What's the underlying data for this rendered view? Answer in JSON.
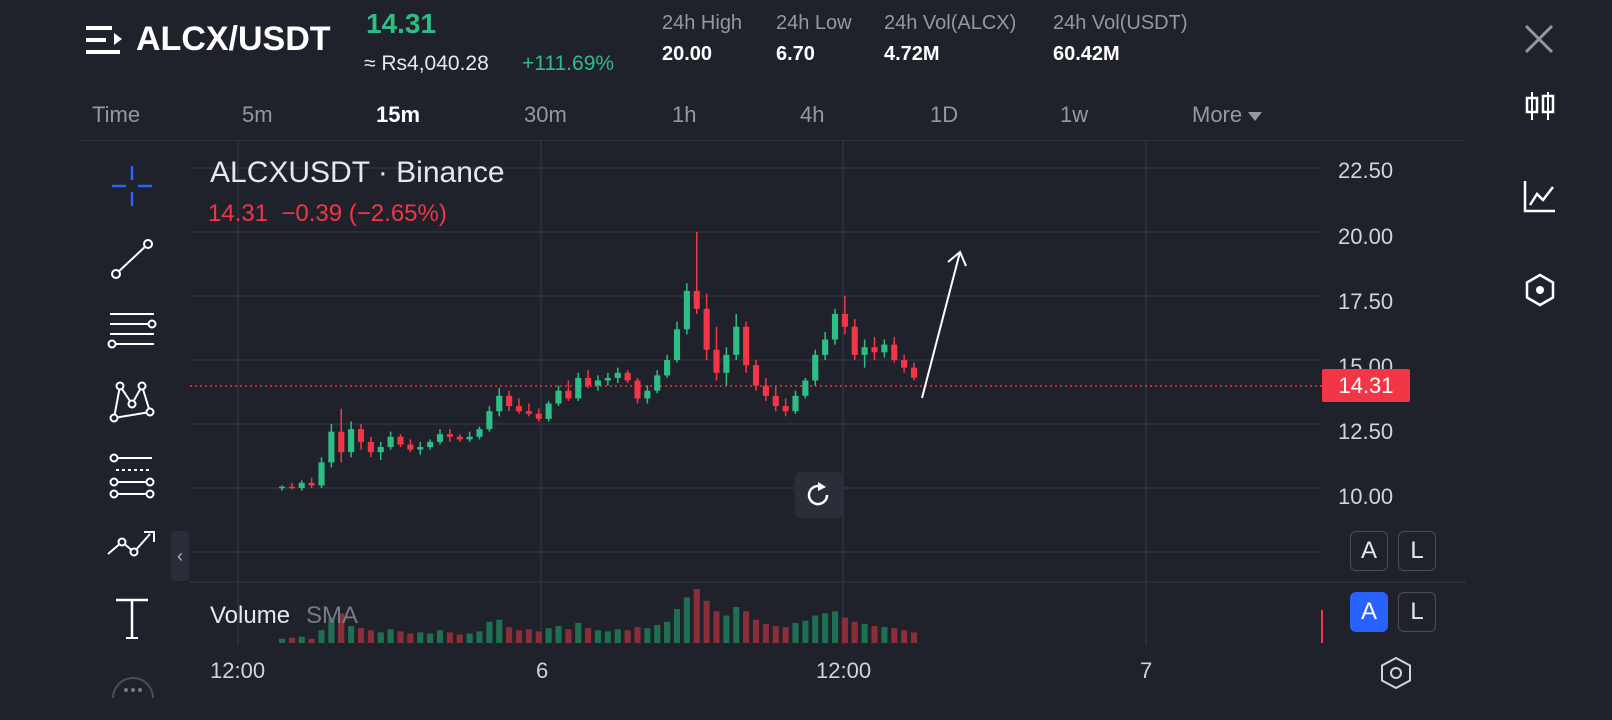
{
  "header": {
    "pair": "ALCX/USDT",
    "last_price": "14.31",
    "fiat_price": "≈ Rs4,040.28",
    "change_pct": "+111.69%",
    "stats": [
      {
        "label": "24h High",
        "value": "20.00"
      },
      {
        "label": "24h Low",
        "value": "6.70"
      },
      {
        "label": "24h Vol(ALCX)",
        "value": "4.72M"
      },
      {
        "label": "24h Vol(USDT)",
        "value": "60.42M"
      }
    ]
  },
  "timeframes": {
    "items": [
      "Time",
      "5m",
      "15m",
      "30m",
      "1h",
      "4h",
      "1D",
      "1w"
    ],
    "active": "15m",
    "more_label": "More"
  },
  "chart": {
    "symbol_title": "ALCXUSDT · Binance",
    "quote_line": "14.31  −0.39 (−2.65%)",
    "current_price_tag": "14.31",
    "volume_label": "Volume",
    "volume_sma": "SMA",
    "price_axis": [
      "22.50",
      "20.00",
      "17.50",
      "15.00",
      "12.50",
      "10.00"
    ],
    "time_axis": [
      "12:00",
      "6",
      "12:00",
      "7"
    ],
    "scale_buttons_1": [
      "A",
      "L"
    ],
    "scale_buttons_2": [
      "A",
      "L"
    ]
  },
  "icons": {
    "menu": "menu-icon",
    "close": "close-icon",
    "candles": "candlestick-icon",
    "indicators": "indicators-icon",
    "settings": "hexagon-settings-icon",
    "reset": "reset-icon"
  },
  "colors": {
    "up": "#2ebd85",
    "down": "#f23645",
    "accent": "#2962ff",
    "background": "#1f222b"
  },
  "chart_data": {
    "type": "candlestick",
    "note_series": "price ALCXUSDT 15m",
    "ylim": [
      8.5,
      23.5
    ],
    "grid": true,
    "candles": [
      [
        10.0,
        10.1,
        9.9,
        10.05
      ],
      [
        10.05,
        10.2,
        9.95,
        10.0
      ],
      [
        10.0,
        10.3,
        9.9,
        10.2
      ],
      [
        10.2,
        10.4,
        10.0,
        10.1
      ],
      [
        10.1,
        11.2,
        10.0,
        11.0
      ],
      [
        11.0,
        12.5,
        10.8,
        12.2
      ],
      [
        12.2,
        13.1,
        11.0,
        11.4
      ],
      [
        11.4,
        12.6,
        11.2,
        12.3
      ],
      [
        12.3,
        12.5,
        11.5,
        11.8
      ],
      [
        11.8,
        12.0,
        11.2,
        11.4
      ],
      [
        11.4,
        11.8,
        11.1,
        11.6
      ],
      [
        11.6,
        12.2,
        11.5,
        12.0
      ],
      [
        12.0,
        12.1,
        11.6,
        11.7
      ],
      [
        11.7,
        11.9,
        11.4,
        11.5
      ],
      [
        11.5,
        11.8,
        11.3,
        11.6
      ],
      [
        11.6,
        11.9,
        11.5,
        11.8
      ],
      [
        11.8,
        12.3,
        11.7,
        12.1
      ],
      [
        12.1,
        12.3,
        11.8,
        12.0
      ],
      [
        12.0,
        12.1,
        11.8,
        11.9
      ],
      [
        11.9,
        12.2,
        11.8,
        12.0
      ],
      [
        12.0,
        12.4,
        11.9,
        12.3
      ],
      [
        12.3,
        13.2,
        12.2,
        13.0
      ],
      [
        13.0,
        13.9,
        12.8,
        13.6
      ],
      [
        13.6,
        13.8,
        13.0,
        13.2
      ],
      [
        13.2,
        13.5,
        12.9,
        13.0
      ],
      [
        13.0,
        13.3,
        12.8,
        12.9
      ],
      [
        12.9,
        13.1,
        12.6,
        12.7
      ],
      [
        12.7,
        13.4,
        12.6,
        13.3
      ],
      [
        13.3,
        14.0,
        13.2,
        13.8
      ],
      [
        13.8,
        14.2,
        13.4,
        13.5
      ],
      [
        13.5,
        14.5,
        13.4,
        14.3
      ],
      [
        14.3,
        14.6,
        13.9,
        14.0
      ],
      [
        14.0,
        14.4,
        13.8,
        14.2
      ],
      [
        14.2,
        14.5,
        14.0,
        14.3
      ],
      [
        14.3,
        14.7,
        14.1,
        14.5
      ],
      [
        14.5,
        14.6,
        14.1,
        14.2
      ],
      [
        14.2,
        14.3,
        13.3,
        13.5
      ],
      [
        13.5,
        14.0,
        13.3,
        13.8
      ],
      [
        13.8,
        14.6,
        13.7,
        14.4
      ],
      [
        14.4,
        15.2,
        14.3,
        15.0
      ],
      [
        15.0,
        16.5,
        14.9,
        16.2
      ],
      [
        16.2,
        18.0,
        16.0,
        17.7
      ],
      [
        17.7,
        20.0,
        16.8,
        17.0
      ],
      [
        17.0,
        17.6,
        15.0,
        15.4
      ],
      [
        15.4,
        16.3,
        14.2,
        14.5
      ],
      [
        14.5,
        15.5,
        14.0,
        15.2
      ],
      [
        15.2,
        16.8,
        15.0,
        16.3
      ],
      [
        16.3,
        16.5,
        14.5,
        14.8
      ],
      [
        14.8,
        15.0,
        13.8,
        14.0
      ],
      [
        14.0,
        14.3,
        13.4,
        13.6
      ],
      [
        13.6,
        14.0,
        13.0,
        13.2
      ],
      [
        13.2,
        13.5,
        12.8,
        13.0
      ],
      [
        13.0,
        13.8,
        12.9,
        13.6
      ],
      [
        13.6,
        14.3,
        13.5,
        14.2
      ],
      [
        14.2,
        15.4,
        14.0,
        15.2
      ],
      [
        15.2,
        16.1,
        15.0,
        15.8
      ],
      [
        15.8,
        17.0,
        15.6,
        16.8
      ],
      [
        16.8,
        17.5,
        16.0,
        16.3
      ],
      [
        16.3,
        16.6,
        15.0,
        15.2
      ],
      [
        15.2,
        15.8,
        14.7,
        15.5
      ],
      [
        15.5,
        15.9,
        15.0,
        15.3
      ],
      [
        15.3,
        15.8,
        15.1,
        15.6
      ],
      [
        15.6,
        15.9,
        14.9,
        15.0
      ],
      [
        15.0,
        15.2,
        14.5,
        14.7
      ],
      [
        14.7,
        14.9,
        14.2,
        14.31
      ]
    ],
    "volumes": [
      0.4,
      0.5,
      0.6,
      0.4,
      1.2,
      2.4,
      2.8,
      1.6,
      1.4,
      1.2,
      1.0,
      1.3,
      1.1,
      0.9,
      1.0,
      0.9,
      1.2,
      1.0,
      0.8,
      0.9,
      1.1,
      2.0,
      2.2,
      1.5,
      1.2,
      1.3,
      1.1,
      1.4,
      1.6,
      1.3,
      1.9,
      1.4,
      1.2,
      1.1,
      1.3,
      1.2,
      1.5,
      1.4,
      1.7,
      2.0,
      3.2,
      4.3,
      5.1,
      4.0,
      3.0,
      2.6,
      3.4,
      3.0,
      2.2,
      1.8,
      1.6,
      1.5,
      1.9,
      2.1,
      2.6,
      2.8,
      3.0,
      2.4,
      2.0,
      1.8,
      1.6,
      1.5,
      1.4,
      1.2,
      1.0
    ]
  }
}
